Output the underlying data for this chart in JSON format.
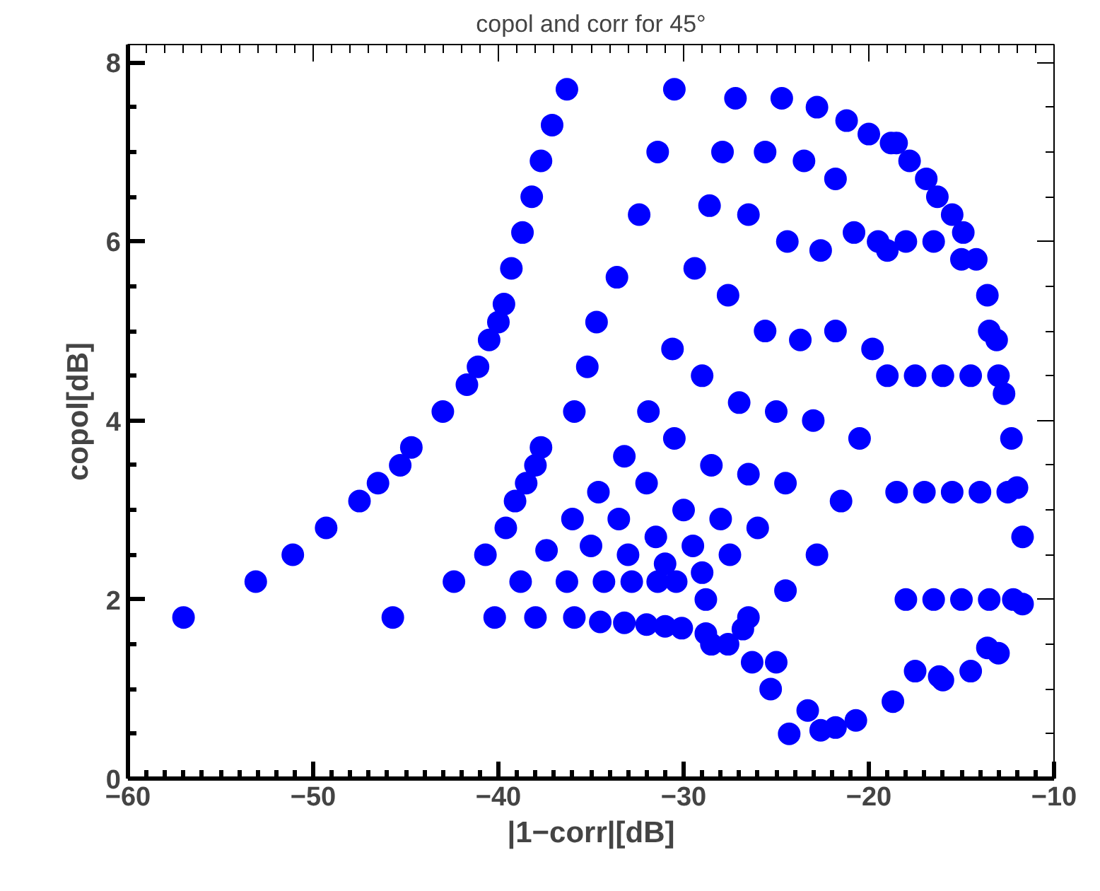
{
  "chart_data": {
    "type": "scatter",
    "title": "copol and corr for 45°",
    "xlabel": "|1−corr|[dB]",
    "ylabel": "copol[dB]",
    "xlim": [
      -60,
      -10
    ],
    "ylim": [
      0,
      8.2
    ],
    "xticks": [
      -60,
      -50,
      -40,
      -30,
      -20,
      -10
    ],
    "yticks": [
      0,
      2,
      4,
      6,
      8
    ],
    "grid": false,
    "marker": "circle",
    "series": [
      {
        "color": "#0000ff",
        "x": [
          -57.0,
          -53.1,
          -51.1,
          -49.3,
          -47.5,
          -46.5,
          -45.3,
          -44.7,
          -43.0,
          -41.7,
          -41.1,
          -40.5,
          -40.0,
          -39.7,
          -39.3,
          -38.7,
          -38.2,
          -37.7,
          -37.1,
          -36.3,
          -45.7,
          -42.4,
          -40.7,
          -39.6,
          -39.1,
          -38.5,
          -38.0,
          -37.7,
          -35.9,
          -35.2,
          -34.7,
          -33.6,
          -32.4,
          -31.4,
          -30.5,
          -40.2,
          -38.0,
          -35.9,
          -34.5,
          -33.2,
          -32.0,
          -31.0,
          -30.1,
          -28.8,
          -27.6,
          -26.3,
          -25.3,
          -24.3,
          -38.8,
          -36.3,
          -34.3,
          -32.8,
          -31.4,
          -30.4,
          -28.8,
          -26.8,
          -25.0,
          -23.3,
          -22.6,
          -37.4,
          -36.0,
          -34.6,
          -33.2,
          -31.9,
          -30.6,
          -29.4,
          -28.6,
          -27.9,
          -27.2,
          -35.0,
          -33.5,
          -32.0,
          -30.5,
          -29.0,
          -27.6,
          -26.5,
          -25.6,
          -24.7,
          -33.0,
          -31.5,
          -30.0,
          -28.5,
          -27.0,
          -25.6,
          -24.4,
          -23.5,
          -22.8,
          -31.0,
          -29.5,
          -28.0,
          -26.5,
          -25.0,
          -23.7,
          -22.6,
          -21.8,
          -21.2,
          -29.0,
          -27.5,
          -26.0,
          -24.5,
          -23.0,
          -21.8,
          -20.8,
          -20.0,
          -28.5,
          -26.5,
          -24.5,
          -22.8,
          -21.5,
          -20.5,
          -19.8,
          -19.0,
          -18.5,
          -18.8,
          -17.8,
          -16.9,
          -16.3,
          -15.5,
          -14.9,
          -14.2,
          -13.6,
          -13.1,
          -12.7,
          -12.3,
          -12.0,
          -11.7,
          -11.7,
          -13.6,
          -16.2,
          -18.7,
          -20.7,
          -21.8,
          -19.5,
          -18.0,
          -16.5,
          -15.0,
          -13.5,
          -19.0,
          -17.5,
          -16.0,
          -14.5,
          -13.0,
          -18.5,
          -17.0,
          -15.5,
          -14.0,
          -12.5,
          -18.0,
          -16.5,
          -15.0,
          -13.5,
          -12.2,
          -17.5,
          -16.0,
          -14.5,
          -13.0
        ],
        "values": [
          1.8,
          2.2,
          2.5,
          2.8,
          3.1,
          3.3,
          3.5,
          3.7,
          4.1,
          4.4,
          4.6,
          4.9,
          5.1,
          5.3,
          5.7,
          6.1,
          6.5,
          6.9,
          7.3,
          7.7,
          1.8,
          2.2,
          2.5,
          2.8,
          3.1,
          3.3,
          3.5,
          3.7,
          4.1,
          4.6,
          5.1,
          5.6,
          6.3,
          7.0,
          7.7,
          1.8,
          1.8,
          1.8,
          1.75,
          1.74,
          1.72,
          1.7,
          1.68,
          1.62,
          1.5,
          1.3,
          1.0,
          0.5,
          2.2,
          2.2,
          2.2,
          2.2,
          2.2,
          2.2,
          2.0,
          1.67,
          1.3,
          0.76,
          0.54,
          2.55,
          2.9,
          3.2,
          3.6,
          4.1,
          4.8,
          5.7,
          6.4,
          7.0,
          7.6,
          2.6,
          2.9,
          3.3,
          3.8,
          4.5,
          5.4,
          6.3,
          7.0,
          7.6,
          2.5,
          2.7,
          3.0,
          3.5,
          4.2,
          5.0,
          6.0,
          6.9,
          7.5,
          2.4,
          2.6,
          2.9,
          3.4,
          4.1,
          4.9,
          5.9,
          6.7,
          7.35,
          2.3,
          2.5,
          2.8,
          3.3,
          4.0,
          5.0,
          6.1,
          7.2,
          1.5,
          1.8,
          2.1,
          2.5,
          3.1,
          3.8,
          4.8,
          5.9,
          7.1,
          7.1,
          6.9,
          6.7,
          6.5,
          6.3,
          6.1,
          5.8,
          5.4,
          4.9,
          4.3,
          3.8,
          3.25,
          2.7,
          1.95,
          1.46,
          1.14,
          0.86,
          0.65,
          0.57,
          6.0,
          6.0,
          6.0,
          5.8,
          5.0,
          4.5,
          4.5,
          4.5,
          4.5,
          4.5,
          3.2,
          3.2,
          3.2,
          3.2,
          3.2,
          2.0,
          2.0,
          2.0,
          2.0,
          2.0,
          1.2,
          1.1,
          1.2,
          1.4
        ]
      }
    ]
  }
}
